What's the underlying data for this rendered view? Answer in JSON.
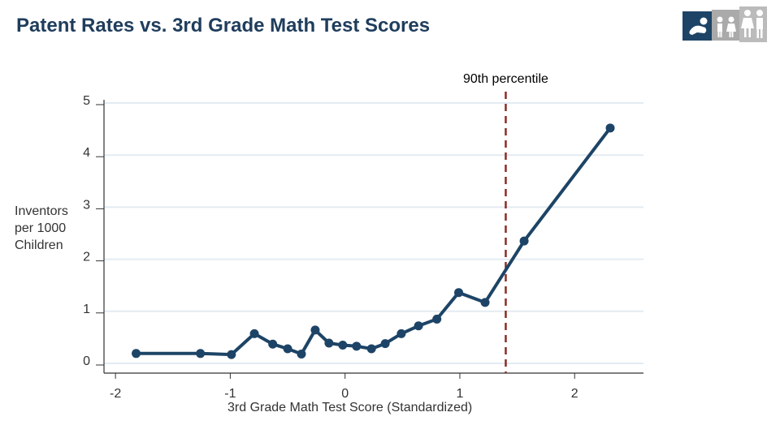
{
  "title": "Patent Rates vs. 3rd Grade Math Test Scores",
  "icons": {
    "left": "baby-icon",
    "middle": "children-icon",
    "right": "adults-icon"
  },
  "colors": {
    "title": "#1f3d5c",
    "series": "#1d4466",
    "reference_line": "#8b2c24",
    "grid": "#e3ebf2"
  },
  "chart_data": {
    "type": "line",
    "title": "",
    "xlabel": "3rd Grade Math Test Score (Standardized)",
    "ylabel": [
      "Inventors",
      "per 1000",
      "Children"
    ],
    "xlim": [
      -2.1,
      2.6
    ],
    "ylim": [
      0,
      5
    ],
    "xticks": [
      -2,
      -1,
      0,
      1,
      2
    ],
    "yticks": [
      0,
      1,
      2,
      3,
      4,
      5
    ],
    "grid": true,
    "reference_line": {
      "x": 1.4,
      "label": "90th percentile",
      "style": "dashed"
    },
    "series": [
      {
        "x": [
          -1.82,
          -1.26,
          -0.99,
          -0.79,
          -0.63,
          -0.5,
          -0.38,
          -0.26,
          -0.14,
          -0.02,
          0.1,
          0.23,
          0.35,
          0.49,
          0.64,
          0.8,
          0.99,
          1.22,
          1.56,
          2.31
        ],
        "y": [
          0.19,
          0.19,
          0.17,
          0.57,
          0.37,
          0.28,
          0.18,
          0.64,
          0.39,
          0.35,
          0.33,
          0.28,
          0.38,
          0.57,
          0.72,
          0.85,
          1.36,
          1.17,
          2.35,
          4.52
        ]
      }
    ]
  }
}
